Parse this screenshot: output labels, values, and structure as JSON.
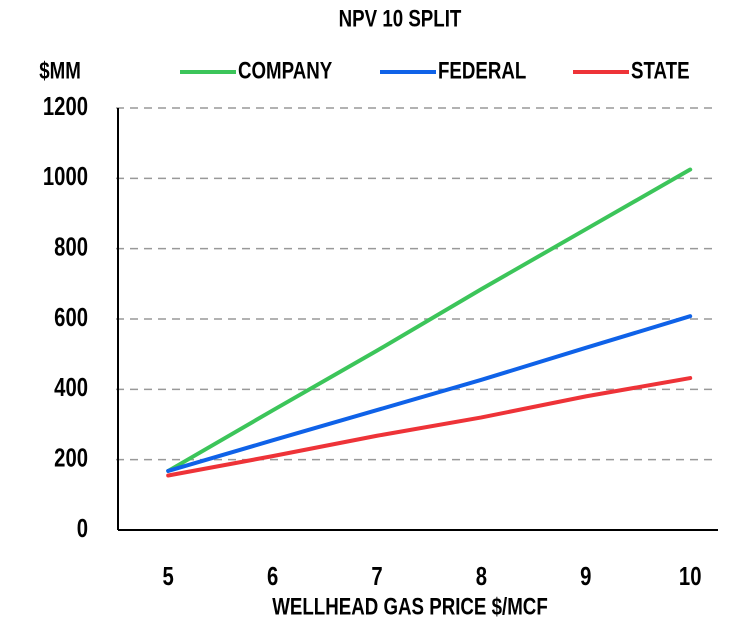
{
  "chart_data": {
    "type": "line",
    "title": "NPV 10 SPLIT",
    "y_label": "$MM",
    "x_label": "WELLHEAD GAS PRICE $/MCF",
    "categories": [
      "5",
      "6",
      "7",
      "8",
      "9",
      "10"
    ],
    "series": [
      {
        "name": "COMPANY",
        "color": "#3cc55a",
        "values": [
          168,
          340,
          510,
          685,
          855,
          1025
        ]
      },
      {
        "name": "FEDERAL",
        "color": "#0f62e8",
        "values": [
          168,
          255,
          341,
          427,
          518,
          608
        ]
      },
      {
        "name": "STATE",
        "color": "#ee3338",
        "values": [
          155,
          210,
          268,
          320,
          380,
          432
        ]
      }
    ],
    "ylim": [
      0,
      1200
    ],
    "yticks": [
      0,
      200,
      400,
      600,
      800,
      1000,
      1200
    ],
    "grid": true,
    "legend": "top"
  }
}
